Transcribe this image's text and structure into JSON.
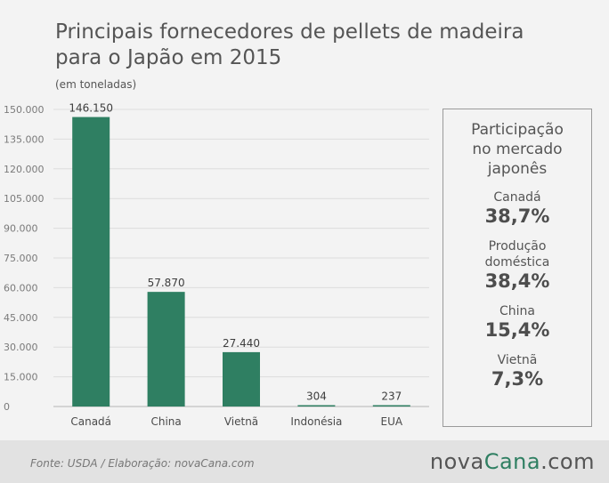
{
  "title_line1": "Principais fornecedores de pellets de madeira",
  "title_line2": "para o Japão em 2015",
  "unit_label": "(em toneladas)",
  "chart_data": {
    "type": "bar",
    "categories": [
      "Canadá",
      "China",
      "Vietnã",
      "Indonésia",
      "EUA"
    ],
    "values": [
      146150,
      57870,
      27440,
      304,
      237
    ],
    "value_labels": [
      "146.150",
      "57.870",
      "27.440",
      "304",
      "237"
    ],
    "ylim": [
      0,
      150000
    ],
    "yticks": [
      0,
      15000,
      30000,
      45000,
      60000,
      75000,
      90000,
      105000,
      120000,
      135000,
      150000
    ],
    "ytick_labels": [
      "0",
      "15.000",
      "30.000",
      "45.000",
      "60.000",
      "75.000",
      "90.000",
      "105.000",
      "120.000",
      "135.000",
      "150.000"
    ],
    "grid": true,
    "bar_color": "#2f7f62"
  },
  "panel": {
    "title_lines": [
      "Participação",
      "no mercado",
      "japonês"
    ],
    "shares": [
      {
        "label_lines": [
          "Canadá"
        ],
        "value": "38,7%"
      },
      {
        "label_lines": [
          "Produção",
          "doméstica"
        ],
        "value": "38,4%"
      },
      {
        "label_lines": [
          "China"
        ],
        "value": "15,4%"
      },
      {
        "label_lines": [
          "Vietnã"
        ],
        "value": "7,3%"
      }
    ]
  },
  "footer": {
    "source": "Fonte:  USDA  /  Elaboração:  novaCana.com",
    "logo_main": "nova",
    "logo_accent": "Cana",
    "logo_tail": ".com"
  }
}
